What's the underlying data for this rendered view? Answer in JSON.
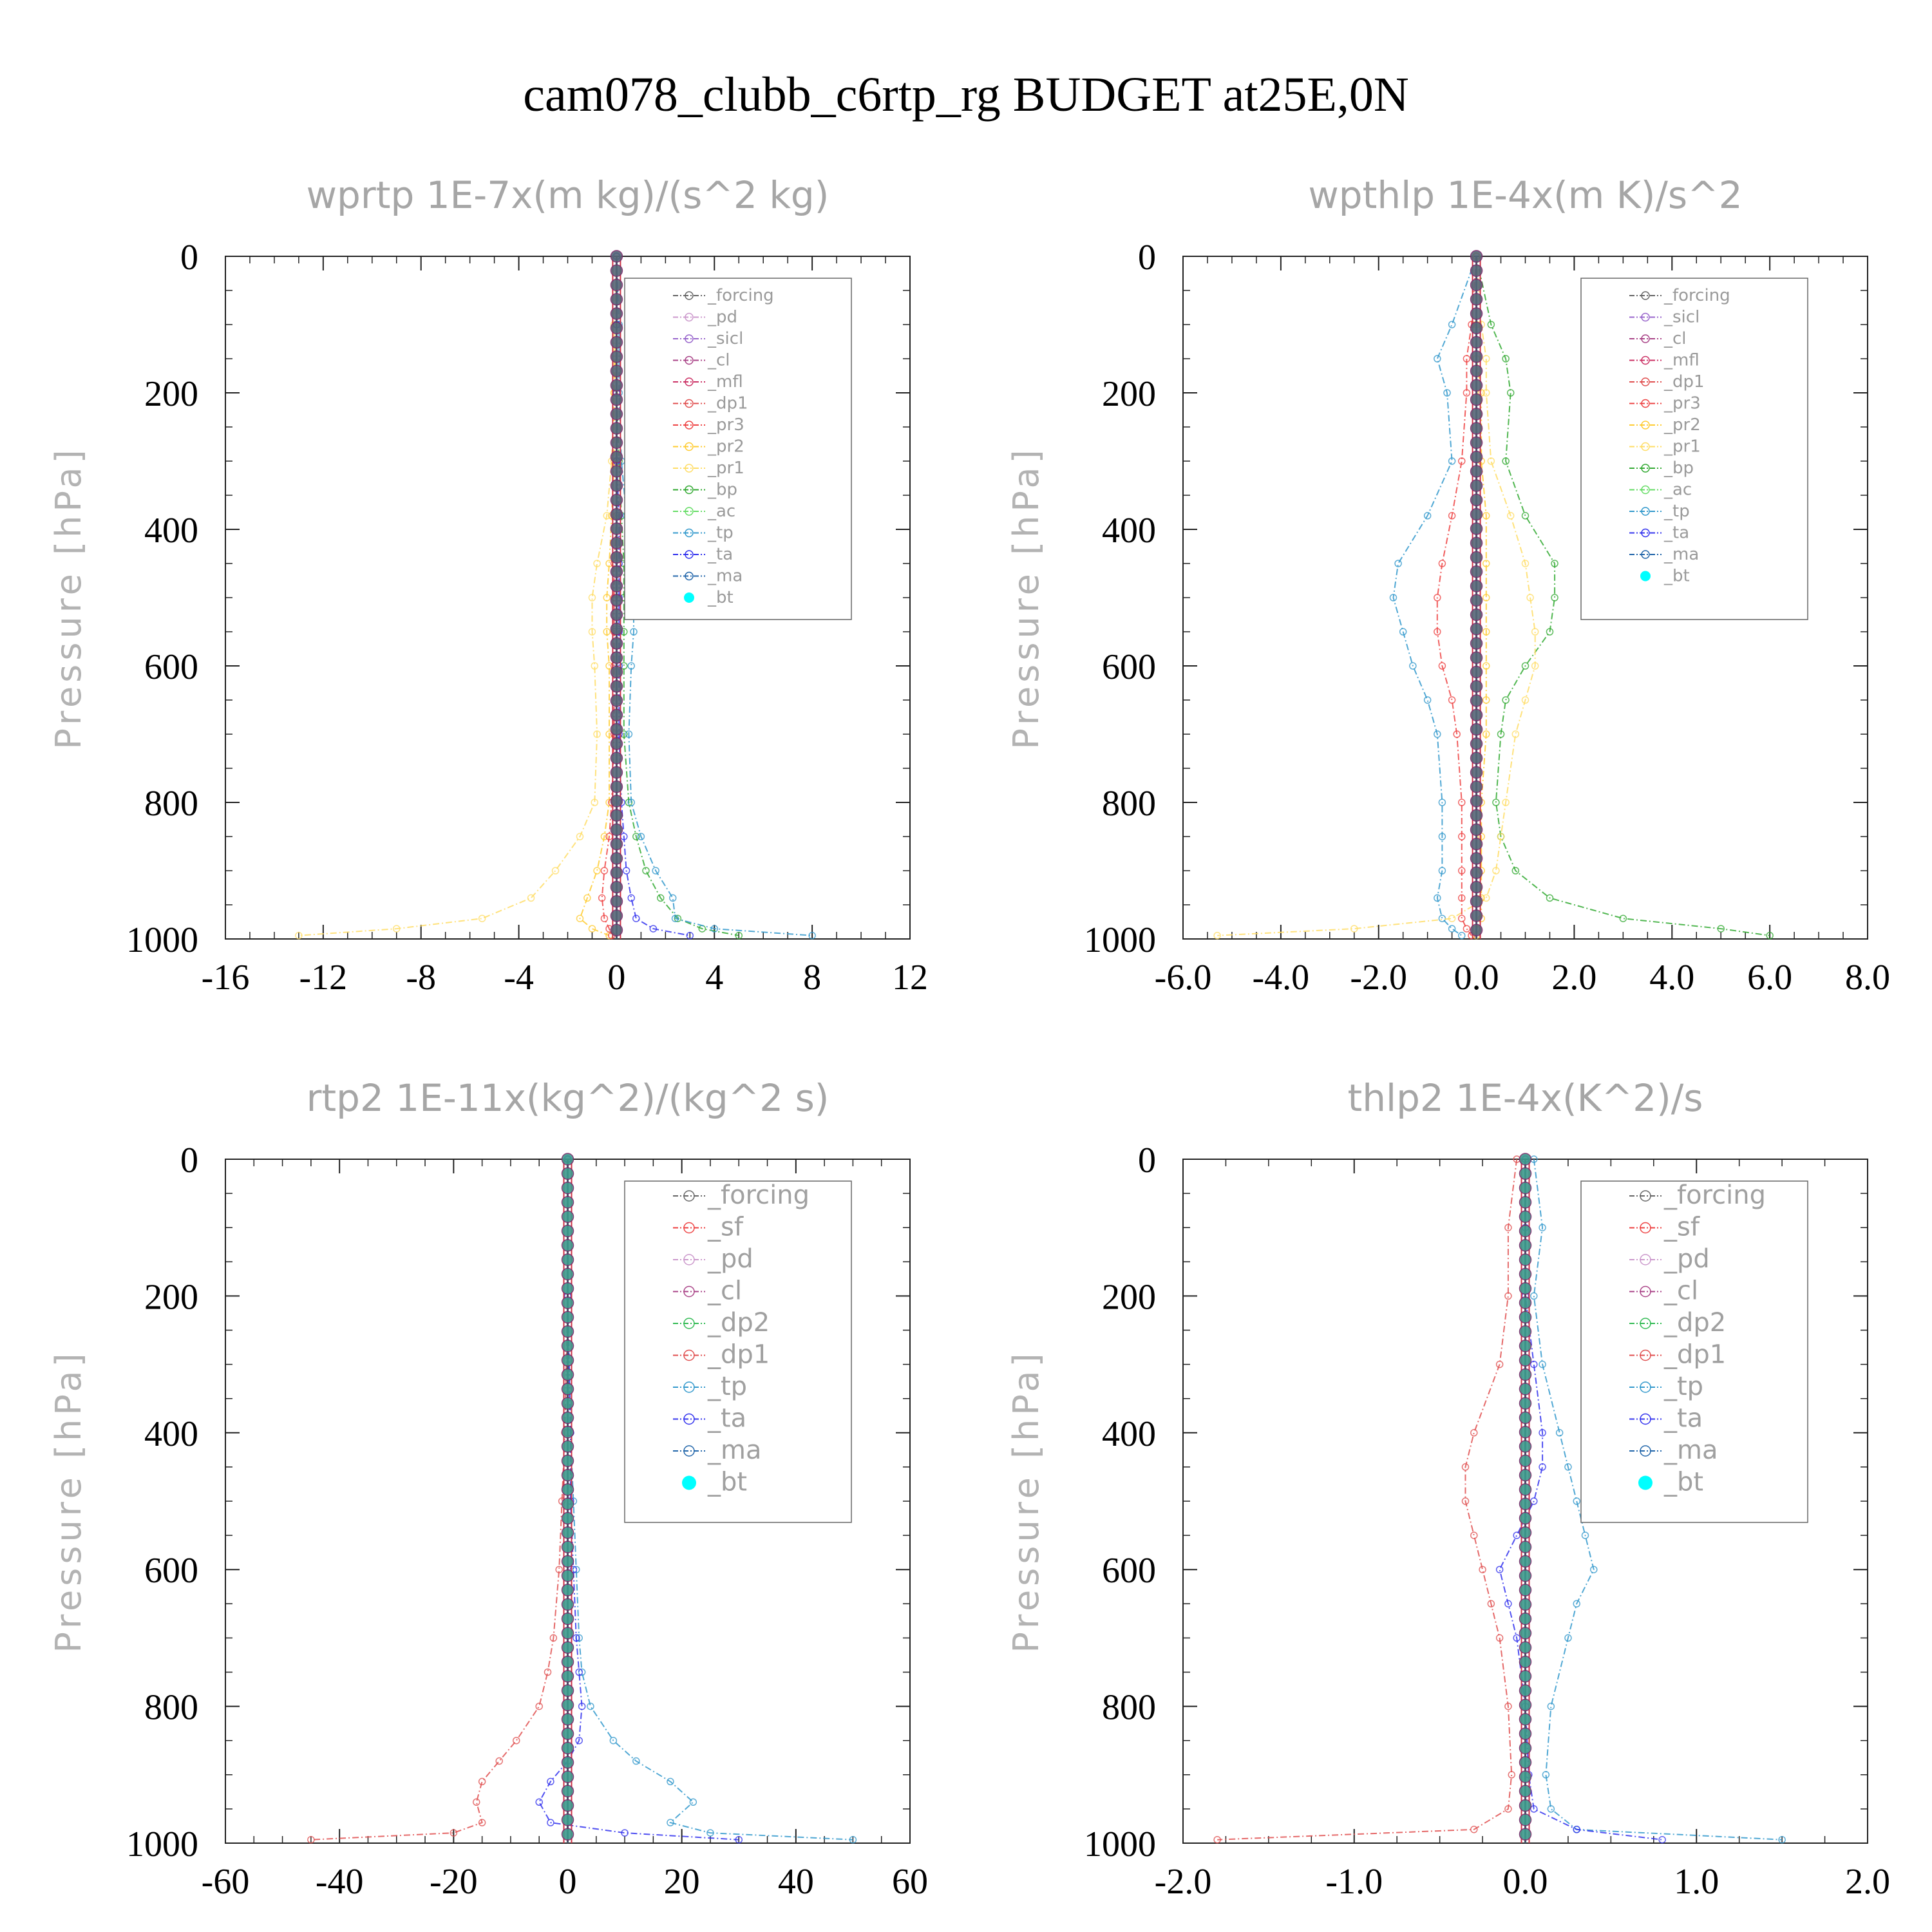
{
  "title": "cam078_clubb_c6rtp_rg  BUDGET at25E,0N",
  "colors": {
    "_forcing": "#666666",
    "_pd": "#cc99cc",
    "_sicl": "#9966cc",
    "_cl": "#aa4488",
    "_mfl": "#cc3366",
    "_dp1": "#e05050",
    "_pr3": "#ee4444",
    "_pr2": "#ffcc33",
    "_pr1": "#ffdd66",
    "_bp": "#33aa33",
    "_ac": "#66dd66",
    "_tp": "#3399cc",
    "_ta": "#3333ee",
    "_ma": "#2266aa",
    "_bt": "#00ffff",
    "_sf": "#ee4444",
    "_dp2": "#33bb55"
  },
  "chart_data": [
    {
      "type": "line",
      "title": "wprtp   1E-7x(m kg)/(s^2 kg)",
      "ylabel": "Pressure [hPa]",
      "xlim": [
        -16,
        12
      ],
      "ylim": [
        1000,
        0
      ],
      "xticks": [
        "-16",
        "-12",
        "-8",
        "-4",
        "0",
        "4",
        "8",
        "12"
      ],
      "yticks": [
        "0",
        "200",
        "400",
        "600",
        "800",
        "1000"
      ],
      "legend": [
        "_forcing",
        "_pd",
        "_sicl",
        "_cl",
        "_mfl",
        "_dp1",
        "_pr3",
        "_pr2",
        "_pr1",
        "_bp",
        "_ac",
        "_tp",
        "_ta",
        "_ma",
        "_bt"
      ],
      "p": [
        0,
        100,
        200,
        300,
        380,
        450,
        500,
        550,
        600,
        700,
        800,
        850,
        900,
        940,
        970,
        985,
        995
      ],
      "series": [
        {
          "name": "_pr1",
          "x": [
            0,
            -0.1,
            -0.1,
            -0.2,
            -0.4,
            -0.8,
            -1.0,
            -1.0,
            -0.9,
            -0.8,
            -0.9,
            -1.5,
            -2.5,
            -3.5,
            -5.5,
            -9.0,
            -13.0
          ]
        },
        {
          "name": "_pr2",
          "x": [
            0,
            0,
            -0.1,
            -0.1,
            -0.2,
            -0.3,
            -0.4,
            -0.4,
            -0.3,
            -0.3,
            -0.3,
            -0.5,
            -0.8,
            -1.2,
            -1.5,
            -1.0,
            -0.3
          ]
        },
        {
          "name": "_pr3",
          "x": [
            0,
            0,
            0,
            0,
            0,
            -0.1,
            -0.1,
            -0.1,
            -0.1,
            -0.1,
            -0.2,
            -0.3,
            -0.5,
            -0.6,
            -0.5,
            -0.3,
            -0.2
          ]
        },
        {
          "name": "_bp",
          "x": [
            0,
            0,
            0,
            0.1,
            0.2,
            0.3,
            0.3,
            0.3,
            0.3,
            0.3,
            0.5,
            0.8,
            1.2,
            1.8,
            2.5,
            3.5,
            5.0
          ]
        },
        {
          "name": "_tp",
          "x": [
            0,
            0.1,
            0.1,
            0.2,
            0.4,
            0.6,
            0.7,
            0.7,
            0.6,
            0.5,
            0.6,
            1.0,
            1.6,
            2.3,
            2.4,
            4.0,
            8.0
          ]
        },
        {
          "name": "_ta",
          "x": [
            0,
            0,
            0,
            0,
            0.1,
            0.1,
            0.1,
            0.1,
            0.1,
            0.1,
            0.2,
            0.3,
            0.4,
            0.6,
            0.8,
            1.5,
            3.0
          ]
        }
      ]
    },
    {
      "type": "line",
      "title": "wpthlp   1E-4x(m K)/s^2",
      "ylabel": "Pressure [hPa]",
      "xlim": [
        -6,
        8
      ],
      "ylim": [
        1000,
        0
      ],
      "xticks": [
        "-6.0",
        "-4.0",
        "-2.0",
        "0.0",
        "2.0",
        "4.0",
        "6.0",
        "8.0"
      ],
      "yticks": [
        "0",
        "200",
        "400",
        "600",
        "800",
        "1000"
      ],
      "legend": [
        "_forcing",
        "_sicl",
        "_cl",
        "_mfl",
        "_dp1",
        "_pr3",
        "_pr2",
        "_pr1",
        "_bp",
        "_ac",
        "_tp",
        "_ta",
        "_ma",
        "_bt"
      ],
      "p": [
        0,
        100,
        150,
        200,
        300,
        380,
        450,
        500,
        550,
        600,
        650,
        700,
        800,
        850,
        900,
        940,
        970,
        985,
        995
      ],
      "series": [
        {
          "name": "_tp",
          "x": [
            0,
            -0.5,
            -0.8,
            -0.6,
            -0.5,
            -1.0,
            -1.6,
            -1.7,
            -1.5,
            -1.3,
            -1.0,
            -0.8,
            -0.7,
            -0.7,
            -0.7,
            -0.8,
            -0.7,
            -0.5,
            -0.3
          ]
        },
        {
          "name": "_bp",
          "x": [
            0,
            0.3,
            0.6,
            0.7,
            0.6,
            1.0,
            1.6,
            1.6,
            1.5,
            1.0,
            0.6,
            0.5,
            0.4,
            0.5,
            0.8,
            1.5,
            3.0,
            5.0,
            6.0
          ]
        },
        {
          "name": "_pr1",
          "x": [
            0,
            0.1,
            0.2,
            0.2,
            0.3,
            0.7,
            1.0,
            1.1,
            1.2,
            1.2,
            1.0,
            0.8,
            0.6,
            0.5,
            0.4,
            0.2,
            -0.5,
            -2.5,
            -5.3
          ]
        },
        {
          "name": "_pr3",
          "x": [
            0,
            -0.1,
            -0.2,
            -0.2,
            -0.3,
            -0.5,
            -0.7,
            -0.8,
            -0.8,
            -0.7,
            -0.5,
            -0.4,
            -0.3,
            -0.3,
            -0.3,
            -0.3,
            -0.3,
            -0.2,
            -0.1
          ]
        },
        {
          "name": "_pr2",
          "x": [
            0,
            0,
            0,
            0.1,
            0.1,
            0.2,
            0.2,
            0.2,
            0.2,
            0.2,
            0.2,
            0.2,
            0.1,
            0.1,
            0.1,
            0.1,
            0.1,
            0,
            0
          ]
        }
      ]
    },
    {
      "type": "line",
      "title": "rtp2   1E-11x(kg^2)/(kg^2 s)",
      "ylabel": "Pressure [hPa]",
      "xlim": [
        -60,
        60
      ],
      "ylim": [
        1000,
        0
      ],
      "xticks": [
        "-60",
        "-40",
        "-20",
        "0",
        "20",
        "40",
        "60"
      ],
      "yticks": [
        "0",
        "200",
        "400",
        "600",
        "800",
        "1000"
      ],
      "legend": [
        "_forcing",
        "_sf",
        "_pd",
        "_cl",
        "_dp2",
        "_dp1",
        "_tp",
        "_ta",
        "_ma",
        "_bt"
      ],
      "p": [
        0,
        200,
        400,
        500,
        600,
        700,
        750,
        800,
        850,
        880,
        910,
        940,
        970,
        985,
        995
      ],
      "series": [
        {
          "name": "_dp1",
          "x": [
            0,
            0,
            -0.5,
            -1.0,
            -1.5,
            -2.5,
            -3.5,
            -5.0,
            -9.0,
            -12.0,
            -15.0,
            -16.0,
            -15.0,
            -20.0,
            -45.0
          ]
        },
        {
          "name": "_tp",
          "x": [
            0,
            0,
            0.5,
            1.0,
            1.5,
            2.0,
            2.5,
            4.0,
            8.0,
            12.0,
            18.0,
            22.0,
            18.0,
            25.0,
            50.0
          ]
        },
        {
          "name": "_ta",
          "x": [
            0,
            0,
            0.5,
            0.5,
            1.0,
            1.5,
            2.0,
            2.5,
            2.0,
            0,
            -3.0,
            -5.0,
            -3.0,
            10.0,
            30.0
          ]
        }
      ]
    },
    {
      "type": "line",
      "title": "thlp2   1E-4x(K^2)/s",
      "ylabel": "Pressure [hPa]",
      "xlim": [
        -2,
        2
      ],
      "ylim": [
        1000,
        0
      ],
      "xticks": [
        "-2.0",
        "-1.0",
        "0.0",
        "1.0",
        "2.0"
      ],
      "yticks": [
        "0",
        "200",
        "400",
        "600",
        "800",
        "1000"
      ],
      "legend": [
        "_forcing",
        "_sf",
        "_pd",
        "_cl",
        "_dp2",
        "_dp1",
        "_tp",
        "_ta",
        "_ma",
        "_bt"
      ],
      "p": [
        0,
        100,
        200,
        300,
        400,
        450,
        500,
        550,
        600,
        650,
        700,
        800,
        900,
        950,
        980,
        995
      ],
      "series": [
        {
          "name": "_tp",
          "x": [
            0.05,
            0.1,
            0.05,
            0.1,
            0.2,
            0.25,
            0.3,
            0.35,
            0.4,
            0.3,
            0.25,
            0.15,
            0.12,
            0.15,
            0.3,
            1.5
          ]
        },
        {
          "name": "_ta",
          "x": [
            0,
            0,
            0,
            0.05,
            0.1,
            0.1,
            0.05,
            -0.05,
            -0.15,
            -0.1,
            -0.05,
            0,
            0.02,
            0.05,
            0.3,
            0.8
          ]
        },
        {
          "name": "_dp1",
          "x": [
            -0.05,
            -0.1,
            -0.1,
            -0.15,
            -0.3,
            -0.35,
            -0.35,
            -0.3,
            -0.25,
            -0.2,
            -0.15,
            -0.1,
            -0.08,
            -0.1,
            -0.3,
            -1.8
          ]
        }
      ]
    }
  ]
}
